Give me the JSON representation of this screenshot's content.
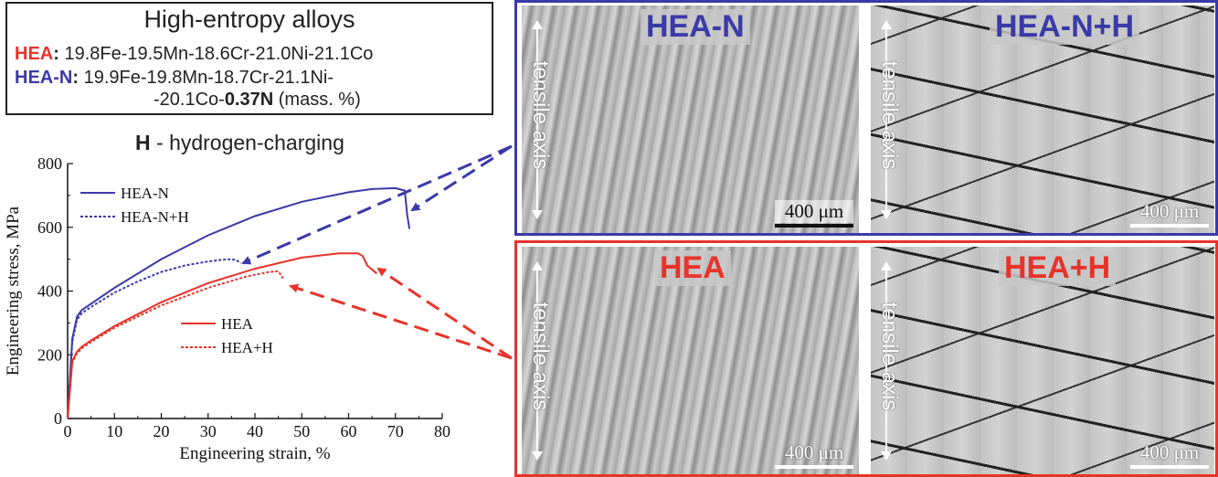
{
  "header": {
    "title": "High-entropy alloys",
    "hea_tag": "HEA",
    "hea_comp": "19.8Fe-19.5Mn-18.6Cr-21.0Ni-21.1Co",
    "hean_tag": "HEA-N",
    "hean_comp_1": "19.9Fe-19.8Mn-18.7Cr-21.1Ni-",
    "hean_comp_2a": "-20.1Co-",
    "hean_comp_2b": "0.37N",
    "hean_comp_2c": " (mass. %)",
    "h_symbol": "H",
    "h_text": " - hydrogen-charging",
    "colon": ":"
  },
  "colors": {
    "red": "#e8332a",
    "blue": "#3a3aa8"
  },
  "chart_data": {
    "type": "line",
    "xlabel": "Engineering strain, %",
    "ylabel": "Engineering stress, MPa",
    "xlim": [
      0,
      80
    ],
    "ylim": [
      0,
      800
    ],
    "xticks": [
      0,
      10,
      20,
      30,
      40,
      50,
      60,
      70,
      80
    ],
    "yticks": [
      0,
      200,
      400,
      600,
      800
    ],
    "series": [
      {
        "name": "HEA-N",
        "color": "#3a3aa8",
        "dash": "solid",
        "x": [
          0,
          1,
          2,
          3,
          5,
          10,
          20,
          30,
          40,
          50,
          60,
          65,
          70,
          72,
          72.5,
          73
        ],
        "y": [
          0,
          250,
          320,
          340,
          360,
          410,
          500,
          575,
          635,
          680,
          710,
          720,
          723,
          715,
          640,
          595
        ]
      },
      {
        "name": "HEA-N+H",
        "color": "#3a3aa8",
        "dash": "dotted",
        "x": [
          0,
          1,
          2,
          3,
          5,
          10,
          15,
          20,
          25,
          30,
          33,
          35,
          36,
          37
        ],
        "y": [
          0,
          240,
          310,
          330,
          350,
          395,
          430,
          460,
          480,
          493,
          498,
          500,
          497,
          488
        ]
      },
      {
        "name": "HEA",
        "color": "#e8332a",
        "dash": "solid",
        "x": [
          0,
          1,
          2,
          3,
          5,
          10,
          20,
          30,
          40,
          50,
          58,
          62,
          63,
          64,
          66
        ],
        "y": [
          0,
          180,
          210,
          225,
          245,
          290,
          365,
          425,
          470,
          505,
          518,
          518,
          510,
          480,
          455
        ]
      },
      {
        "name": "HEA+H",
        "color": "#e8332a",
        "dash": "dotted",
        "x": [
          0,
          1,
          2,
          3,
          5,
          10,
          20,
          30,
          38,
          43,
          45,
          46
        ],
        "y": [
          0,
          175,
          205,
          220,
          240,
          285,
          355,
          410,
          445,
          460,
          462,
          440
        ]
      }
    ],
    "legend_blue": [
      "HEA-N",
      "HEA-N+H"
    ],
    "legend_red": [
      "HEA",
      "HEA+H"
    ]
  },
  "micrographs": {
    "blue_panel": [
      {
        "label": "HEA-N",
        "axis_text": "tensile axis",
        "scale": "400 μm"
      },
      {
        "label": "HEA-N+H",
        "axis_text": "tensile axis",
        "scale": "400 μm"
      }
    ],
    "red_panel": [
      {
        "label": "HEA",
        "axis_text": "tensile axis",
        "scale": "400 μm"
      },
      {
        "label": "HEA+H",
        "axis_text": "tensile axis",
        "scale": "400 μm"
      }
    ]
  }
}
